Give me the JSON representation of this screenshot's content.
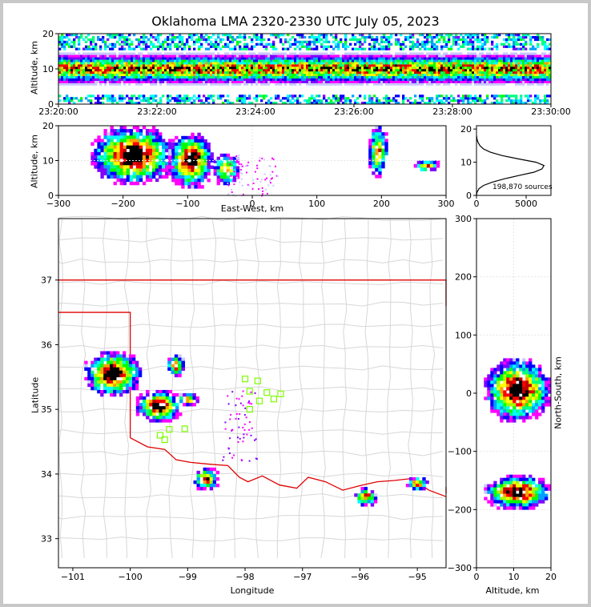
{
  "title": "Oklahoma LMA 2320-2330 UTC July 05, 2023",
  "colors": {
    "boundary": "#d7d7d7",
    "state_line": "#e00000",
    "station": "#7cfc00",
    "frame": "#000000"
  },
  "chart_data": [
    {
      "id": "time-altitude",
      "type": "heatmap",
      "ylabel": "Altitude, km",
      "xlim": [
        "23:20:00",
        "23:30:00"
      ],
      "ylim": [
        0,
        20
      ],
      "xticks": [
        "23:20:00",
        "23:22:00",
        "23:24:00",
        "23:26:00",
        "23:28:00",
        "23:30:00"
      ],
      "yticks": [
        "0",
        "10",
        "20"
      ]
    },
    {
      "id": "ew-altitude",
      "type": "heatmap",
      "xlabel": "East-West, km",
      "ylabel": "Altitude, km",
      "xlim": [
        -300,
        300
      ],
      "ylim": [
        0,
        20
      ],
      "xticks": [
        "−300",
        "−200",
        "−100",
        "0",
        "100",
        "200",
        "300"
      ],
      "yticks": [
        "0",
        "10",
        "20"
      ],
      "clusters": [
        {
          "x": [
            -250,
            -120
          ],
          "y": [
            3,
            20
          ]
        },
        {
          "x": [
            -130,
            -60
          ],
          "y": [
            2,
            18
          ]
        },
        {
          "x": [
            -60,
            -20
          ],
          "y": [
            3,
            12
          ]
        },
        {
          "x": [
            180,
            210
          ],
          "y": [
            5,
            20
          ]
        },
        {
          "x": [
            250,
            290
          ],
          "y": [
            7,
            10
          ]
        }
      ]
    },
    {
      "id": "altitude-histogram",
      "type": "line",
      "xlim": [
        0,
        7500
      ],
      "ylim": [
        0,
        21
      ],
      "xticks": [
        "0",
        "5000"
      ],
      "yticks": [
        "0",
        "10",
        "20"
      ],
      "annotation": "198,870 sources",
      "x": [
        0,
        60,
        250,
        700,
        1600,
        2800,
        4300,
        5800,
        6600,
        6800,
        6000,
        4200,
        2600,
        1400,
        700,
        350,
        150,
        50,
        10
      ],
      "y": [
        0,
        1,
        2,
        3,
        4,
        5,
        6,
        7,
        8,
        9,
        10,
        11,
        12,
        13,
        14,
        15,
        16,
        17,
        18
      ]
    },
    {
      "id": "plan-view",
      "type": "scatter",
      "xlabel": "Longitude",
      "ylabel": "Latitude",
      "xlim": [
        -101.25,
        -94.5
      ],
      "ylim": [
        32.55,
        37.95
      ],
      "xticks": [
        "−101",
        "−100",
        "−99",
        "−98",
        "−97",
        "−96",
        "−95"
      ],
      "yticks": [
        "33",
        "34",
        "35",
        "36",
        "37"
      ],
      "stations": [
        {
          "lon": -98.0,
          "lat": 35.47
        },
        {
          "lon": -97.78,
          "lat": 35.44
        },
        {
          "lon": -97.92,
          "lat": 35.28
        },
        {
          "lon": -97.62,
          "lat": 35.26
        },
        {
          "lon": -97.38,
          "lat": 35.24
        },
        {
          "lon": -97.5,
          "lat": 35.16
        },
        {
          "lon": -97.75,
          "lat": 35.13
        },
        {
          "lon": -97.92,
          "lat": 35.0
        },
        {
          "lon": -99.05,
          "lat": 34.7
        },
        {
          "lon": -99.32,
          "lat": 34.69
        },
        {
          "lon": -99.48,
          "lat": 34.6
        },
        {
          "lon": -99.4,
          "lat": 34.53
        }
      ],
      "clusters": [
        {
          "lon": [
            -100.8,
            -99.8
          ],
          "lat": [
            35.2,
            35.9
          ]
        },
        {
          "lon": [
            -99.9,
            -99.1
          ],
          "lat": [
            34.8,
            35.3
          ]
        },
        {
          "lon": [
            -99.2,
            -98.8
          ],
          "lat": [
            35.05,
            35.25
          ]
        },
        {
          "lon": [
            -99.35,
            -99.05
          ],
          "lat": [
            35.5,
            35.85
          ]
        },
        {
          "lon": [
            -98.9,
            -98.45
          ],
          "lat": [
            33.75,
            34.1
          ]
        },
        {
          "lon": [
            -96.1,
            -95.7
          ],
          "lat": [
            33.5,
            33.8
          ]
        },
        {
          "lon": [
            -95.2,
            -94.8
          ],
          "lat": [
            33.75,
            33.95
          ]
        }
      ]
    },
    {
      "id": "altitude-ns",
      "type": "heatmap",
      "xlabel": "Altitude, km",
      "ylabel": "North-South, km",
      "xlim": [
        0,
        20
      ],
      "ylim": [
        -300,
        300
      ],
      "xticks": [
        "0",
        "10",
        "20"
      ],
      "yticks": [
        "−300",
        "−200",
        "−100",
        "0",
        "100",
        "200",
        "300"
      ],
      "clusters": [
        {
          "x": [
            2,
            20
          ],
          "y": [
            -50,
            60
          ]
        },
        {
          "x": [
            2,
            20
          ],
          "y": [
            -200,
            -140
          ]
        }
      ]
    }
  ]
}
